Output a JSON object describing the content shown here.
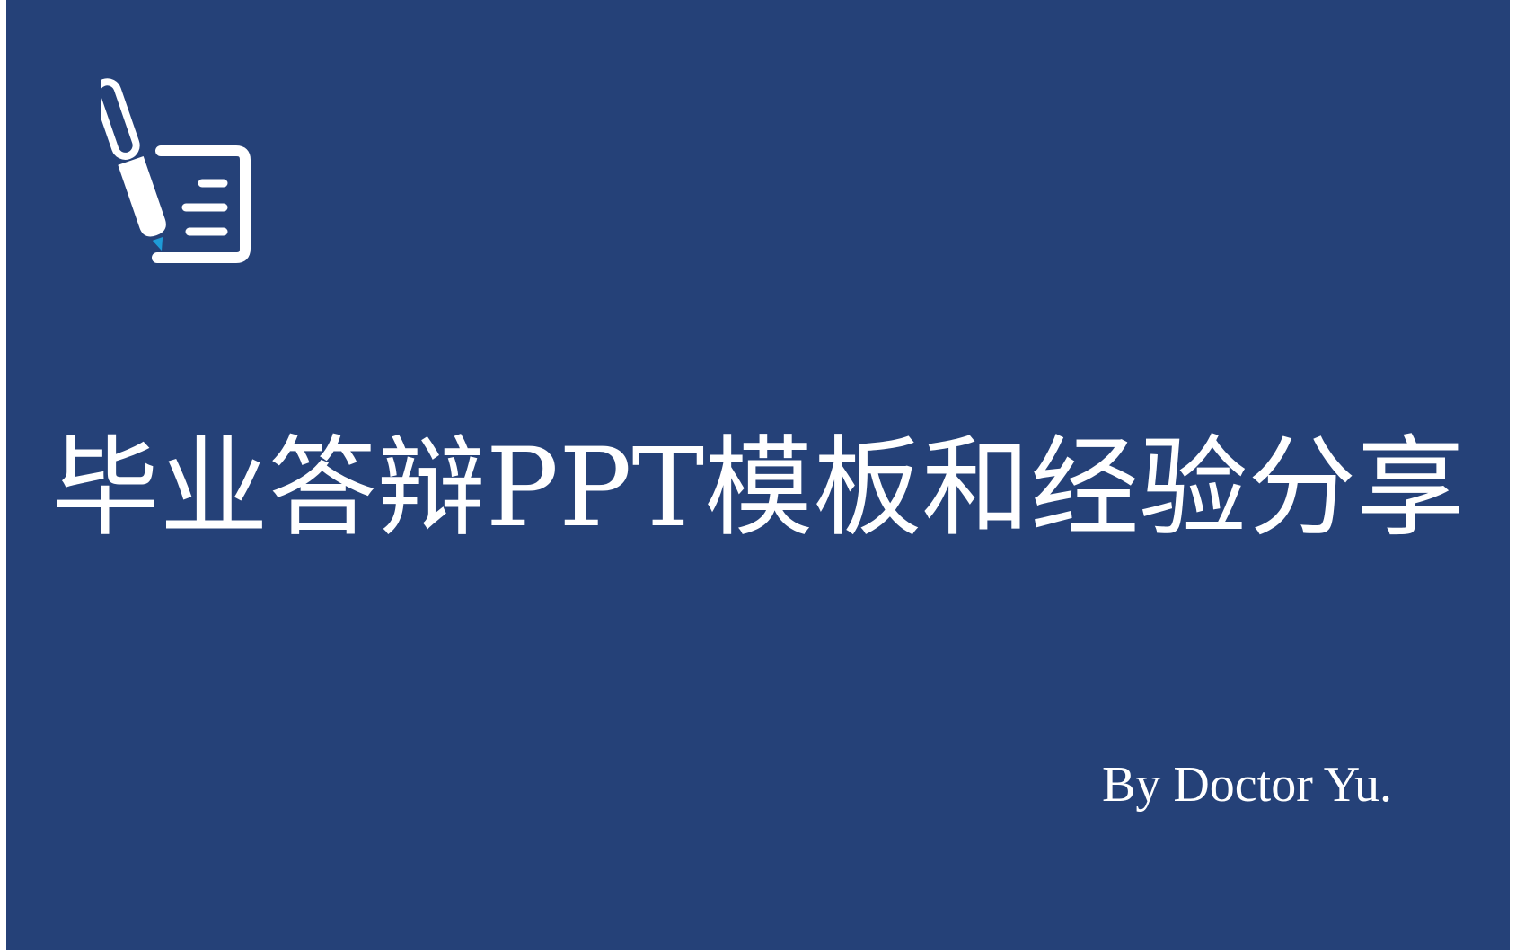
{
  "slide": {
    "background_color": "#254178",
    "icon": "pen-and-document-icon",
    "icon_accent_color": "#1e9bd7",
    "title": "毕业答辩PPT模板和经验分享",
    "author": "By Doctor Yu."
  }
}
